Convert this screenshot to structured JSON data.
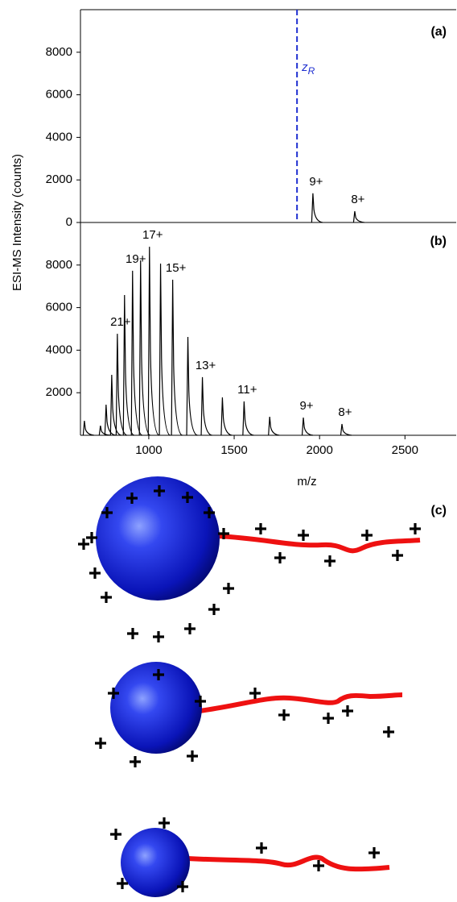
{
  "chart_data": [
    {
      "type": "peaks",
      "panel_label": "(a)",
      "ylabel": "ESI-MS Intensity (counts)",
      "xlim": [
        600,
        2800
      ],
      "ylim": [
        0,
        10000
      ],
      "yticks": [
        0,
        2000,
        4000,
        6000,
        8000
      ],
      "x": [
        1961,
        2206
      ],
      "values": [
        1370,
        530
      ],
      "labels": [
        "9+",
        "8+"
      ],
      "color": "#000000",
      "markers": [
        {
          "x": 1868,
          "label": "z",
          "subscript": "R",
          "color": "#1f2fd0"
        }
      ]
    },
    {
      "type": "peaks",
      "panel_label": "(b)",
      "xlabel": "m/z",
      "xlim": [
        600,
        2800
      ],
      "ylim": [
        0,
        10000
      ],
      "yticks": [
        2000,
        4000,
        6000,
        8000
      ],
      "xticks": [
        1000,
        1500,
        2000,
        2500
      ],
      "x": [
        623,
        717,
        750,
        783,
        816,
        858,
        905,
        952,
        1004,
        1069,
        1140,
        1229,
        1314,
        1431,
        1558,
        1708,
        1905,
        2131
      ],
      "values": [
        680,
        450,
        1440,
        2840,
        4770,
        6590,
        7730,
        8220,
        8860,
        8070,
        7310,
        4620,
        2730,
        1780,
        1590,
        870,
        830,
        530
      ],
      "labels": [
        null,
        null,
        null,
        null,
        "21+",
        null,
        "19+",
        null,
        "17+",
        null,
        "15+",
        null,
        "13+",
        null,
        "11+",
        null,
        "9+",
        "8+"
      ],
      "color": "#000000"
    }
  ],
  "diagram": {
    "label": "(c)"
  }
}
